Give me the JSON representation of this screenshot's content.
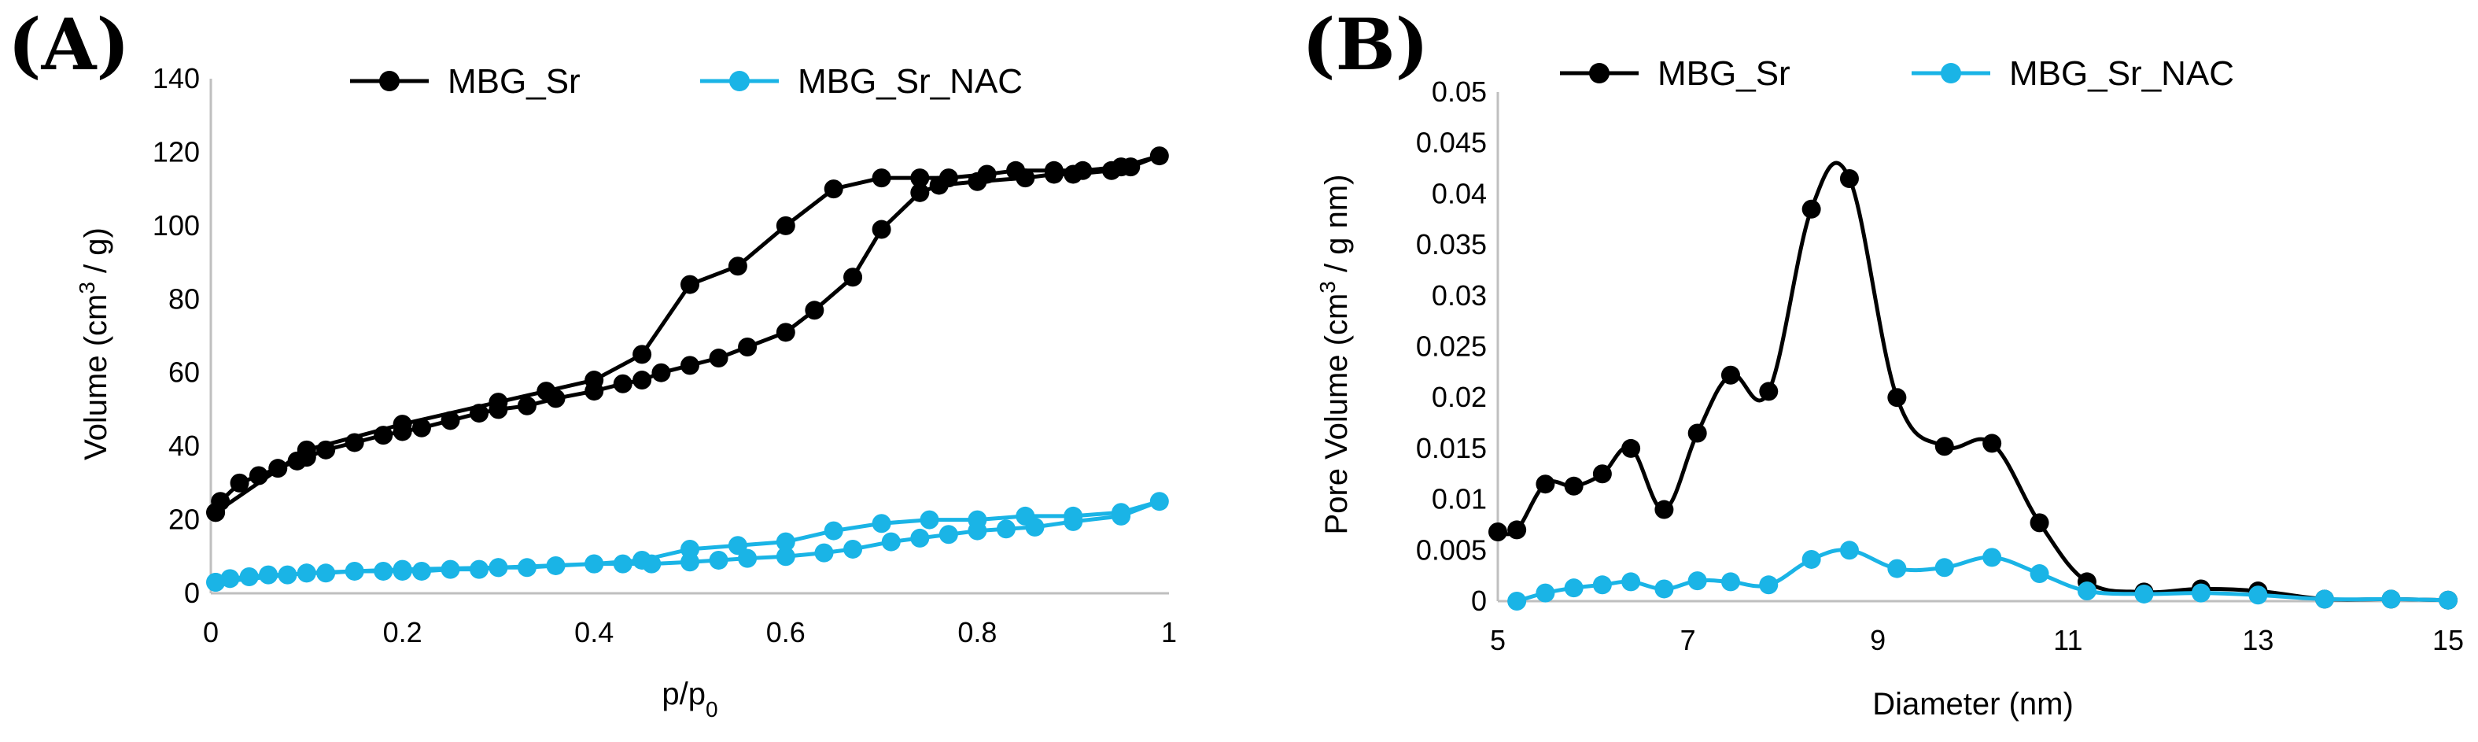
{
  "chart_data": [
    {
      "type": "line",
      "panel_label": "(A)",
      "xlabel": "p/p",
      "xlabel_sub": "0",
      "ylabel": "Volume (cm",
      "ylabel_sup": "3",
      "ylabel_rest": " / g)",
      "xlim": [
        0,
        1
      ],
      "ylim": [
        0,
        140
      ],
      "x_ticks": [
        0,
        0.2,
        0.4,
        0.6,
        0.8,
        1
      ],
      "x_tick_labels": [
        "0",
        "0.2",
        "0.4",
        "0.6",
        "0.8",
        "1"
      ],
      "y_ticks": [
        0,
        20,
        40,
        60,
        80,
        100,
        120,
        140
      ],
      "y_tick_labels": [
        "0",
        "20",
        "40",
        "60",
        "80",
        "100",
        "120",
        "140"
      ],
      "legend": "top",
      "series": [
        {
          "name": "MBG_Sr",
          "color": "#000000",
          "x": [
            0.005,
            0.01,
            0.03,
            0.05,
            0.07,
            0.09,
            0.1,
            0.12,
            0.15,
            0.18,
            0.2,
            0.22,
            0.25,
            0.28,
            0.3,
            0.33,
            0.36,
            0.4,
            0.43,
            0.45,
            0.47,
            0.5,
            0.53,
            0.56,
            0.6,
            0.63,
            0.67,
            0.7,
            0.74,
            0.76,
            0.8,
            0.85,
            0.88,
            0.9,
            0.94,
            0.96,
            0.99,
            0.95,
            0.91,
            0.88,
            0.84,
            0.81,
            0.77,
            0.74,
            0.7,
            0.65,
            0.6,
            0.55,
            0.5,
            0.45,
            0.4,
            0.35,
            0.3,
            0.2,
            0.1,
            0.005
          ],
          "y": [
            22,
            25,
            30,
            32,
            34,
            36,
            37,
            39,
            41,
            43,
            44,
            45,
            47,
            49,
            50,
            51,
            53,
            55,
            57,
            58,
            60,
            62,
            64,
            67,
            71,
            77,
            86,
            99,
            109,
            111,
            112,
            113,
            114,
            114,
            115,
            116,
            119,
            116,
            115,
            115,
            115,
            114,
            113,
            113,
            113,
            110,
            100,
            89,
            84,
            65,
            58,
            55,
            52,
            46,
            39,
            22
          ]
        },
        {
          "name": "MBG_Sr_NAC",
          "color": "#1ab4e6",
          "x": [
            0.005,
            0.02,
            0.04,
            0.06,
            0.08,
            0.1,
            0.12,
            0.15,
            0.18,
            0.2,
            0.22,
            0.25,
            0.28,
            0.3,
            0.33,
            0.36,
            0.4,
            0.43,
            0.46,
            0.5,
            0.53,
            0.56,
            0.6,
            0.64,
            0.67,
            0.71,
            0.74,
            0.77,
            0.8,
            0.83,
            0.86,
            0.9,
            0.95,
            0.99,
            0.95,
            0.9,
            0.85,
            0.8,
            0.75,
            0.7,
            0.65,
            0.6,
            0.55,
            0.5,
            0.45,
            0.4,
            0.3,
            0.2,
            0.1,
            0.005
          ],
          "y": [
            3,
            4,
            4.5,
            5,
            5,
            5.5,
            5.5,
            6,
            6,
            6,
            6,
            6.5,
            6.5,
            7,
            7,
            7.5,
            8,
            8,
            8,
            8.5,
            9,
            9.5,
            10,
            11,
            12,
            14,
            15,
            16,
            17,
            17.5,
            18,
            19.5,
            21,
            25,
            22,
            21,
            21,
            20,
            20,
            19,
            17,
            14,
            13,
            12,
            9,
            8,
            7,
            6.5,
            5.5,
            3
          ]
        }
      ]
    },
    {
      "type": "line",
      "panel_label": "(B)",
      "xlabel": "Diameter (nm)",
      "ylabel": "Pore Volume (cm",
      "ylabel_sup": "3",
      "ylabel_rest": " / g nm)",
      "xlim": [
        5,
        15
      ],
      "ylim": [
        0,
        0.05
      ],
      "x_ticks": [
        5,
        7,
        9,
        11,
        13,
        15
      ],
      "x_tick_labels": [
        "5",
        "7",
        "9",
        "11",
        "13",
        "15"
      ],
      "y_ticks": [
        0,
        0.005,
        0.01,
        0.015,
        0.02,
        0.025,
        0.03,
        0.035,
        0.04,
        0.045,
        0.05
      ],
      "y_tick_labels": [
        "0",
        "0.005",
        "0.01",
        "0.015",
        "0.02",
        "0.025",
        "0.03",
        "0.035",
        "0.04",
        "0.045",
        "0.05"
      ],
      "legend": "top",
      "series": [
        {
          "name": "MBG_Sr",
          "color": "#000000",
          "x": [
            5.0,
            5.2,
            5.5,
            5.8,
            6.1,
            6.4,
            6.75,
            7.1,
            7.45,
            7.85,
            8.3,
            8.7,
            9.2,
            9.7,
            10.2,
            10.7,
            11.2,
            11.8,
            12.4,
            13.0,
            13.7,
            14.4,
            15.0
          ],
          "y": [
            0.0068,
            0.007,
            0.0115,
            0.0113,
            0.0125,
            0.015,
            0.009,
            0.0165,
            0.0222,
            0.0206,
            0.0385,
            0.0415,
            0.02,
            0.0152,
            0.0155,
            0.0077,
            0.0019,
            0.0009,
            0.0012,
            0.001,
            0.0002,
            0.0002,
            0.0001
          ]
        },
        {
          "name": "MBG_Sr_NAC",
          "color": "#1ab4e6",
          "x": [
            5.2,
            5.5,
            5.8,
            6.1,
            6.4,
            6.75,
            7.1,
            7.45,
            7.85,
            8.3,
            8.7,
            9.2,
            9.7,
            10.2,
            10.7,
            11.2,
            11.8,
            12.4,
            13.0,
            13.7,
            14.4,
            15.0
          ],
          "y": [
            0,
            0.0008,
            0.0013,
            0.0016,
            0.0019,
            0.0012,
            0.002,
            0.0019,
            0.0016,
            0.0041,
            0.005,
            0.0032,
            0.0033,
            0.0043,
            0.0027,
            0.001,
            0.0007,
            0.0008,
            0.0006,
            0.0002,
            0.0002,
            0.0001
          ]
        }
      ]
    }
  ]
}
